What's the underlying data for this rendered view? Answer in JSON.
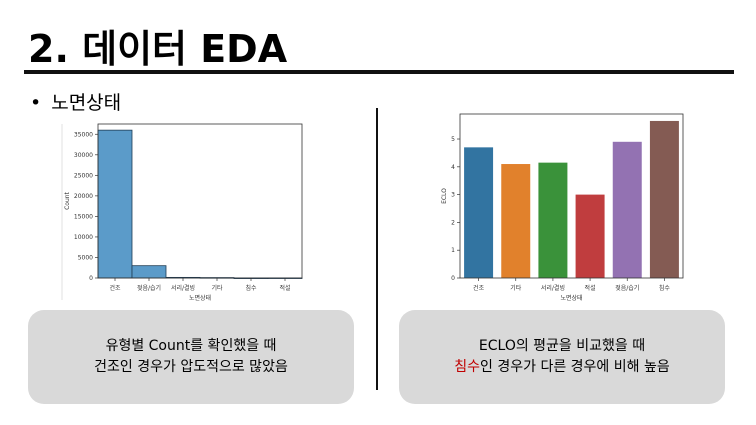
{
  "slide": {
    "title": "2. 데이터 EDA",
    "bullet": "노면상태",
    "left_note": {
      "line1": "유형별 Count를 확인했을 때",
      "line2": "건조인 경우가 압도적으로 많았음"
    },
    "right_note": {
      "line1": "ECLO의 평균을 비교했을 때",
      "line2_highlight": "침수",
      "line2_rest": "인 경우가 다른 경우에 비해 높음"
    }
  },
  "colors": {
    "highlight": "#c00000",
    "note_bg": "#d9d9d9"
  },
  "chart_data": [
    {
      "type": "bar",
      "title": "",
      "xlabel": "노면상태",
      "ylabel": "Count",
      "categories": [
        "건조",
        "젖음/습기",
        "서리/결빙",
        "기타",
        "침수",
        "적설"
      ],
      "values": [
        36000,
        3000,
        150,
        100,
        10,
        20
      ],
      "ylim": [
        0,
        37500
      ],
      "yticks": [
        0,
        5000,
        10000,
        15000,
        20000,
        25000,
        30000,
        35000
      ],
      "colors": [
        "#5b9bc9"
      ],
      "grid": false
    },
    {
      "type": "bar",
      "title": "",
      "xlabel": "노면상태",
      "ylabel": "ECLO",
      "categories": [
        "건조",
        "기타",
        "서리/결빙",
        "적설",
        "젖음/습기",
        "침수"
      ],
      "values": [
        4.7,
        4.1,
        4.15,
        3.0,
        4.9,
        5.65
      ],
      "ylim": [
        0,
        5.9
      ],
      "yticks": [
        0,
        1,
        2,
        3,
        4,
        5
      ],
      "colors": [
        "#3274a1",
        "#e1812c",
        "#3a923a",
        "#c03d3e",
        "#9372b2",
        "#845b53"
      ],
      "grid": false
    }
  ]
}
